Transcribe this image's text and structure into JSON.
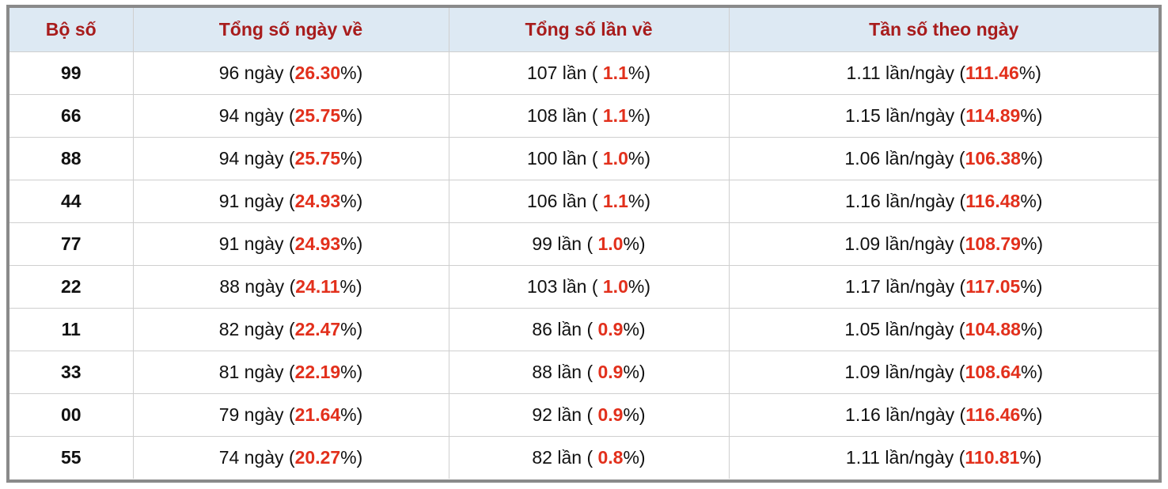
{
  "table": {
    "header": [
      "Bộ số",
      "Tổng số ngày về",
      "Tổng số lần về",
      "Tần số theo ngày"
    ],
    "rows": [
      [
        "99",
        [
          "96 ngày (",
          "26.30",
          "%)"
        ],
        [
          "107 lần ( ",
          "1.1",
          "%)"
        ],
        [
          "1.11 lần/ngày (",
          "111.46",
          "%)"
        ]
      ],
      [
        "66",
        [
          "94 ngày (",
          "25.75",
          "%)"
        ],
        [
          "108 lần ( ",
          "1.1",
          "%)"
        ],
        [
          "1.15 lần/ngày (",
          "114.89",
          "%)"
        ]
      ],
      [
        "88",
        [
          "94 ngày (",
          "25.75",
          "%)"
        ],
        [
          "100 lần ( ",
          "1.0",
          "%)"
        ],
        [
          "1.06 lần/ngày (",
          "106.38",
          "%)"
        ]
      ],
      [
        "44",
        [
          "91 ngày (",
          "24.93",
          "%)"
        ],
        [
          "106 lần ( ",
          "1.1",
          "%)"
        ],
        [
          "1.16 lần/ngày (",
          "116.48",
          "%)"
        ]
      ],
      [
        "77",
        [
          "91 ngày (",
          "24.93",
          "%)"
        ],
        [
          "99 lần ( ",
          "1.0",
          "%)"
        ],
        [
          "1.09 lần/ngày (",
          "108.79",
          "%)"
        ]
      ],
      [
        "22",
        [
          "88 ngày (",
          "24.11",
          "%)"
        ],
        [
          "103 lần ( ",
          "1.0",
          "%)"
        ],
        [
          "1.17 lần/ngày (",
          "117.05",
          "%)"
        ]
      ],
      [
        "11",
        [
          "82 ngày (",
          "22.47",
          "%)"
        ],
        [
          "86 lần ( ",
          "0.9",
          "%)"
        ],
        [
          "1.05 lần/ngày (",
          "104.88",
          "%)"
        ]
      ],
      [
        "33",
        [
          "81 ngày (",
          "22.19",
          "%)"
        ],
        [
          "88 lần ( ",
          "0.9",
          "%)"
        ],
        [
          "1.09 lần/ngày (",
          "108.64",
          "%)"
        ]
      ],
      [
        "00",
        [
          "79 ngày (",
          "21.64",
          "%)"
        ],
        [
          "92 lần ( ",
          "0.9",
          "%)"
        ],
        [
          "1.16 lần/ngày (",
          "116.46",
          "%)"
        ]
      ],
      [
        "55",
        [
          "74 ngày (",
          "20.27",
          "%)"
        ],
        [
          "82 lần ( ",
          "0.8",
          "%)"
        ],
        [
          "1.11 lần/ngày (",
          "110.81",
          "%)"
        ]
      ]
    ]
  }
}
